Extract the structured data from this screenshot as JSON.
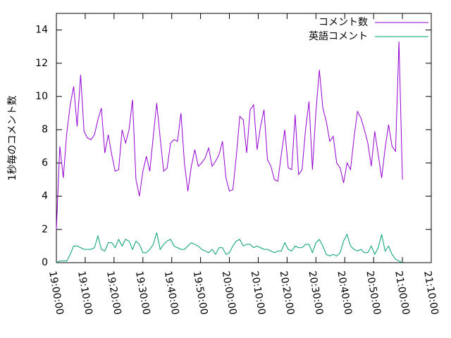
{
  "chart_data": {
    "type": "line",
    "ylabel": "1秒毎のコメント数",
    "legend": "top-right",
    "grid": false,
    "xlim": [
      "19:00:00",
      "21:10:00"
    ],
    "xticks": [
      "19:00:00",
      "19:10:00",
      "19:20:00",
      "19:30:00",
      "19:40:00",
      "19:50:00",
      "20:00:00",
      "20:10:00",
      "20:20:00",
      "20:30:00",
      "20:40:00",
      "20:50:00",
      "21:00:00",
      "21:10:00"
    ],
    "ylim": [
      0,
      15
    ],
    "yticks": [
      0,
      2,
      4,
      6,
      8,
      10,
      12,
      14
    ],
    "x": [
      "19:00:00",
      "19:01:12",
      "19:02:24",
      "19:03:36",
      "19:04:48",
      "19:06:00",
      "19:07:12",
      "19:08:24",
      "19:09:36",
      "19:10:48",
      "19:12:00",
      "19:13:12",
      "19:14:24",
      "19:15:36",
      "19:16:48",
      "19:18:00",
      "19:19:12",
      "19:20:24",
      "19:21:36",
      "19:22:48",
      "19:24:00",
      "19:25:12",
      "19:26:24",
      "19:27:36",
      "19:28:48",
      "19:30:00",
      "19:31:12",
      "19:32:24",
      "19:33:36",
      "19:34:48",
      "19:36:00",
      "19:37:12",
      "19:38:24",
      "19:39:36",
      "19:40:48",
      "19:42:00",
      "19:43:12",
      "19:44:24",
      "19:45:36",
      "19:46:48",
      "19:48:00",
      "19:49:12",
      "19:50:24",
      "19:51:36",
      "19:52:48",
      "19:54:00",
      "19:55:12",
      "19:56:24",
      "19:57:36",
      "19:58:48",
      "20:00:00",
      "20:01:12",
      "20:02:24",
      "20:03:36",
      "20:04:48",
      "20:06:00",
      "20:07:12",
      "20:08:24",
      "20:09:36",
      "20:10:48",
      "20:12:00",
      "20:13:12",
      "20:14:24",
      "20:15:36",
      "20:16:48",
      "20:18:00",
      "20:19:12",
      "20:20:24",
      "20:21:36",
      "20:22:48",
      "20:24:00",
      "20:25:12",
      "20:26:24",
      "20:27:36",
      "20:28:48",
      "20:30:00",
      "20:31:12",
      "20:32:24",
      "20:33:36",
      "20:34:48",
      "20:36:00",
      "20:37:12",
      "20:38:24",
      "20:39:36",
      "20:40:48",
      "20:42:00",
      "20:43:12",
      "20:44:24",
      "20:45:36",
      "20:46:48",
      "20:48:00",
      "20:49:12",
      "20:50:24",
      "20:51:36",
      "20:52:48",
      "20:54:00",
      "20:55:12",
      "20:56:24",
      "20:57:36",
      "20:58:48",
      "21:00:00"
    ],
    "series": [
      {
        "name": "コメント数",
        "color": "#9400d3",
        "values": [
          2.0,
          7.0,
          5.1,
          7.8,
          9.5,
          10.6,
          8.2,
          11.3,
          7.9,
          7.5,
          7.4,
          7.7,
          8.6,
          9.3,
          6.6,
          7.7,
          6.5,
          5.5,
          5.6,
          8.0,
          7.2,
          8.0,
          9.8,
          5.0,
          4.0,
          5.5,
          6.4,
          5.5,
          7.6,
          9.6,
          7.5,
          5.5,
          5.7,
          7.2,
          7.4,
          7.3,
          9.0,
          6.0,
          4.3,
          5.8,
          6.8,
          5.8,
          6.0,
          6.3,
          6.9,
          5.8,
          6.1,
          6.5,
          7.3,
          5.1,
          4.3,
          4.4,
          6.4,
          8.8,
          8.6,
          6.6,
          9.2,
          9.5,
          6.8,
          8.2,
          9.2,
          6.2,
          5.8,
          5.0,
          4.9,
          6.5,
          8.0,
          5.7,
          5.6,
          8.9,
          5.3,
          5.6,
          8.0,
          9.7,
          5.6,
          9.1,
          11.6,
          9.3,
          8.5,
          7.3,
          7.6,
          6.0,
          5.7,
          4.8,
          6.0,
          5.6,
          7.5,
          9.1,
          8.7,
          8.0,
          7.2,
          5.8,
          7.9,
          6.5,
          5.1,
          6.9,
          8.3,
          7.0,
          6.7,
          13.3,
          5.0
        ]
      },
      {
        "name": "英語コメント",
        "color": "#009e73",
        "values": [
          0.0,
          0.1,
          0.1,
          0.1,
          0.5,
          1.0,
          1.0,
          0.9,
          0.8,
          0.8,
          0.8,
          0.9,
          1.6,
          0.8,
          0.7,
          1.2,
          1.2,
          0.9,
          1.4,
          1.0,
          1.4,
          1.3,
          0.8,
          1.3,
          1.1,
          0.6,
          0.6,
          0.8,
          1.1,
          1.8,
          0.8,
          1.1,
          1.3,
          1.4,
          1.0,
          0.9,
          0.8,
          0.8,
          1.0,
          1.2,
          1.1,
          1.0,
          0.8,
          0.7,
          0.6,
          0.8,
          0.5,
          0.9,
          0.9,
          0.5,
          0.6,
          1.0,
          1.3,
          1.4,
          1.0,
          1.1,
          1.1,
          0.9,
          1.0,
          0.9,
          0.8,
          0.8,
          0.7,
          0.6,
          0.7,
          0.7,
          1.2,
          0.8,
          0.7,
          1.0,
          0.9,
          0.9,
          1.1,
          1.1,
          0.6,
          1.2,
          1.4,
          1.0,
          0.5,
          0.4,
          0.5,
          0.4,
          0.6,
          1.3,
          1.7,
          1.0,
          0.8,
          0.7,
          0.8,
          0.6,
          0.6,
          1.0,
          0.5,
          0.9,
          1.7,
          0.7,
          1.0,
          0.5,
          0.2,
          0.1,
          0.0
        ]
      }
    ]
  }
}
